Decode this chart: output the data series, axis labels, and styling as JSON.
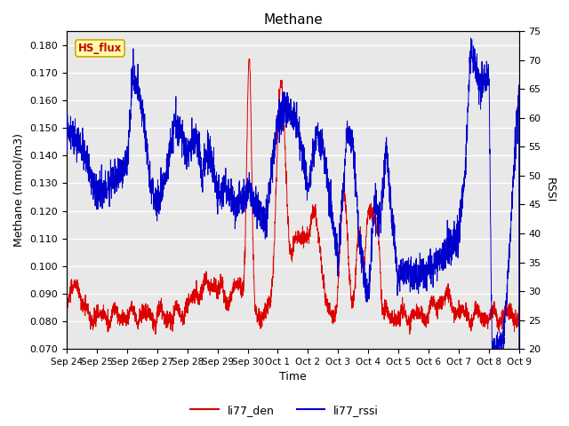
{
  "title": "Methane",
  "ylabel_left": "Methane (mmol/m3)",
  "ylabel_right": "RSSI",
  "xlabel": "Time",
  "ylim_left": [
    0.07,
    0.185
  ],
  "ylim_right": [
    20,
    75
  ],
  "yticks_left": [
    0.07,
    0.08,
    0.09,
    0.1,
    0.11,
    0.12,
    0.13,
    0.14,
    0.15,
    0.16,
    0.17,
    0.18
  ],
  "yticks_right": [
    20,
    25,
    30,
    35,
    40,
    45,
    50,
    55,
    60,
    65,
    70,
    75
  ],
  "color_red": "#dd0000",
  "color_blue": "#0000cc",
  "bg_color": "#e8e8e8",
  "annotation_text": "HS_flux",
  "annotation_bg": "#ffffaa",
  "annotation_border": "#ccaa00",
  "legend_label_red": "li77_den",
  "legend_label_blue": "li77_rssi",
  "xtick_labels": [
    "Sep 24",
    "Sep 25",
    "Sep 26",
    "Sep 27",
    "Sep 28",
    "Sep 29",
    "Sep 30",
    "Oct 1",
    "Oct 2",
    "Oct 3",
    "Oct 4",
    "Oct 5",
    "Oct 6",
    "Oct 7",
    "Oct 8",
    "Oct 9"
  ],
  "figsize": [
    6.4,
    4.8
  ],
  "dpi": 100
}
